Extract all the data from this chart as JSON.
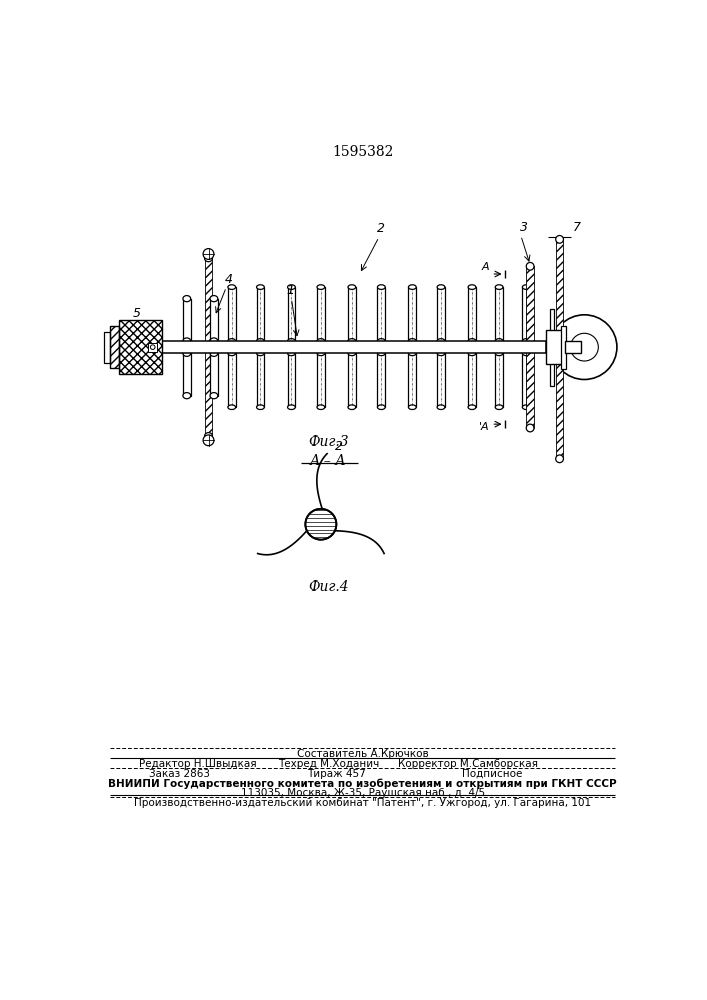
{
  "patent_number": "1595382",
  "fig3_label": "Фиг.3",
  "fig4_label": "Фиг.4",
  "section_label": "А – А",
  "bg_color": "#ffffff",
  "line_color": "#000000",
  "footer_line1": "Составитель А.Крючков",
  "footer_line2a": "Редактор Н.Швыдкая",
  "footer_line2b": "Техред М.Ходанич",
  "footer_line2c": "Корректор М.Самборская",
  "footer_line3a": "Заказ 2863",
  "footer_line3b": "Тираж 457",
  "footer_line3c": "Подписное",
  "footer_line4": "ВНИИПИ Государственного комитета по изобретениям и открытиям при ГКНТ СССР",
  "footer_line5": "113035, Москва, Ж-35, Раушская наб., д. 4/5",
  "footer_line6": "Производственно-издательский комбинат \"Патент\", г. Ужгород, ул. Гагарина, 101"
}
